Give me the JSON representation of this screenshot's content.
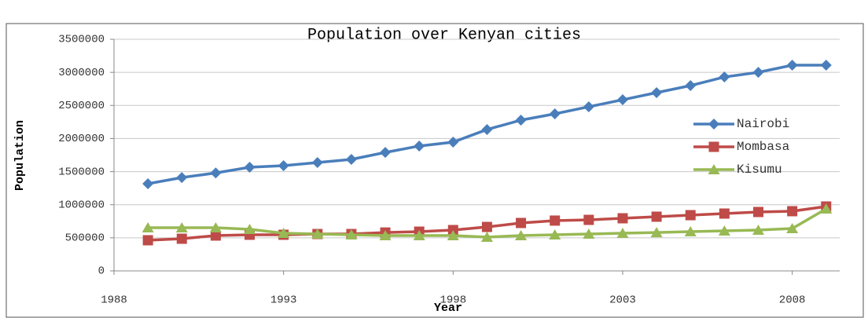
{
  "chart_data": {
    "type": "line",
    "title": "Population over Kenyan cities",
    "x_label": "Year",
    "y_label": "Population",
    "x": [
      1989,
      1990,
      1991,
      1992,
      1993,
      1994,
      1995,
      1996,
      1997,
      1998,
      1999,
      2000,
      2001,
      2002,
      2003,
      2004,
      2005,
      2006,
      2007,
      2008,
      2009
    ],
    "series": [
      {
        "name": "Nairobi",
        "color": "#4a7ebb",
        "marker": "diamond",
        "values": [
          1317000,
          1410000,
          1480000,
          1566000,
          1590000,
          1637000,
          1685000,
          1790000,
          1887000,
          1946000,
          2136000,
          2278000,
          2373000,
          2480000,
          2586000,
          2693000,
          2800000,
          2930000,
          3000000,
          3108000,
          3108000
        ]
      },
      {
        "name": "Mombasa",
        "color": "#be4b48",
        "marker": "square",
        "values": [
          463000,
          486000,
          534000,
          546000,
          546000,
          557000,
          557000,
          580000,
          593000,
          617000,
          664000,
          724000,
          760000,
          771000,
          795000,
          819000,
          842000,
          866000,
          890000,
          902000,
          973000
        ]
      },
      {
        "name": "Kisumu",
        "color": "#98b954",
        "marker": "triangle",
        "values": [
          653000,
          653000,
          653000,
          629000,
          570000,
          557000,
          546000,
          534000,
          534000,
          534000,
          510000,
          534000,
          546000,
          557000,
          570000,
          580000,
          593000,
          605000,
          617000,
          640000,
          937000
        ]
      }
    ],
    "xlim": [
      1988,
      2009.4
    ],
    "xticks": [
      1988,
      1993,
      1998,
      2003,
      2008
    ],
    "ylim": [
      0,
      3500000
    ],
    "yticks": [
      0,
      500000,
      1000000,
      1500000,
      2000000,
      2500000,
      3000000,
      3500000
    ],
    "grid": true,
    "legend": "right"
  }
}
